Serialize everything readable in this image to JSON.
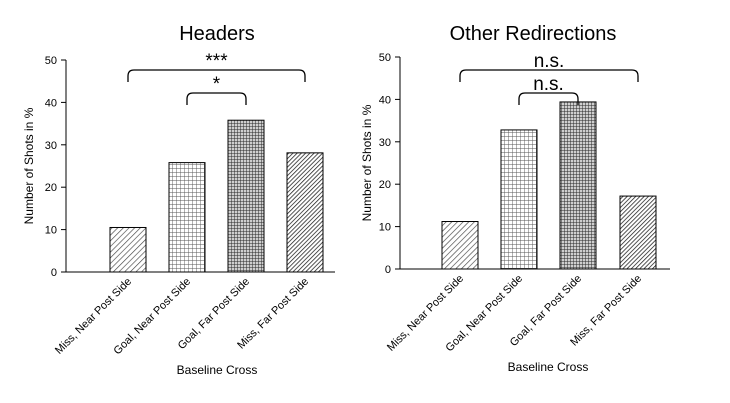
{
  "chart_data": [
    {
      "type": "bar",
      "title": "Headers",
      "xlabel": "Baseline Cross",
      "ylabel": "Number of Shots in %",
      "ylim": [
        0,
        50
      ],
      "yticks": [
        0,
        10,
        20,
        30,
        40,
        50
      ],
      "grid": false,
      "categories": [
        "Miss, Near Post Side",
        "Goal, Near Post Side",
        "Goal, Far Post Side",
        "Miss, Far Post Side"
      ],
      "values": [
        10.5,
        25.8,
        35.8,
        28.1
      ],
      "patterns": [
        "diag-light",
        "grid-light",
        "grid-dark",
        "diag-dense"
      ],
      "significance": [
        {
          "from": 1,
          "to": 2,
          "label": "*"
        },
        {
          "from": 0,
          "to": 3,
          "label": "***"
        }
      ]
    },
    {
      "type": "bar",
      "title": "Other Redirections",
      "xlabel": "Baseline Cross",
      "ylabel": "Number of Shots in %",
      "ylim": [
        0,
        50
      ],
      "yticks": [
        0,
        10,
        20,
        30,
        40,
        50
      ],
      "grid": false,
      "categories": [
        "Miss, Near Post Side",
        "Goal, Near Post Side",
        "Goal, Far Post Side",
        "Miss, Far Post Side"
      ],
      "values": [
        11.2,
        32.8,
        39.4,
        17.2
      ],
      "patterns": [
        "diag-light",
        "grid-light",
        "grid-dark",
        "diag-dense"
      ],
      "significance": [
        {
          "from": 1,
          "to": 2,
          "label": "n.s."
        },
        {
          "from": 0,
          "to": 3,
          "label": "n.s."
        }
      ]
    }
  ]
}
